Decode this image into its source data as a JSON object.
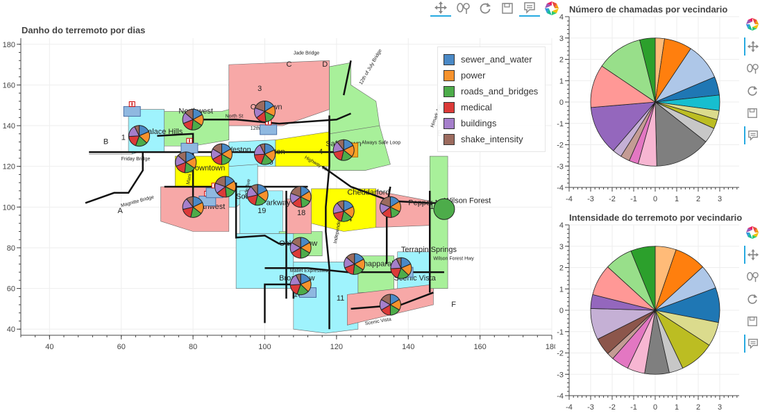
{
  "colors": {
    "sewer_and_water": "#4a89c6",
    "power": "#f7922c",
    "roads_and_bridges": "#4dac4a",
    "medical": "#dc3a38",
    "buildings": "#a57fcb",
    "shake_intensity": "#9c6b5e",
    "toolbar_accent": "#26aae1"
  },
  "toolbar": {
    "icons": [
      "pan-icon",
      "wheel-zoom-icon",
      "reset-icon",
      "save-icon",
      "hover-icon",
      "bokeh-logo-icon"
    ]
  },
  "main": {
    "title": "Danho do terremoto por dias",
    "map": {
      "district_names": [
        "Palace Hills",
        "Northwest",
        "Old Town",
        "Safe Town",
        "Weston",
        "Easton",
        "Downtown",
        "Southton",
        "Southwest",
        "Pepper Mill",
        "Cheddarford",
        "Parkway",
        "Oak Willow",
        "Broadview",
        "Chapparal",
        "Terrapin Springs",
        "Scenic Vista",
        "Wilson Forest"
      ],
      "district_numbers": [
        "1",
        "2",
        "3",
        "4",
        "5",
        "6",
        "7",
        "8",
        "9",
        "10",
        "11",
        "12",
        "13",
        "14",
        "15",
        "16",
        "17",
        "18",
        "19"
      ],
      "street_labels": [
        "North St",
        "12th St",
        "Friday Bridge",
        "Magnitte Bridge",
        "Jade Bridge",
        "Highway 19",
        "Mallet Expressway",
        "Scenic Vista",
        "Himark Ave",
        "Always Safe Loop",
        "12th of July Bridge",
        "Wilson Forest Hwy",
        "Jade Ave",
        "Independence Ave",
        "Himark Bridge",
        "Jade St",
        "Mani St"
      ],
      "region_letters": [
        "A",
        "B",
        "C",
        "D",
        "E",
        "F"
      ]
    },
    "chart_data": {
      "type": "scatter",
      "title": "Danho do terremoto por dias",
      "xlim": [
        32,
        180
      ],
      "ylim": [
        37,
        183
      ],
      "xticks": [
        40,
        60,
        80,
        100,
        120,
        140,
        160,
        180
      ],
      "yticks": [
        40,
        60,
        80,
        100,
        120,
        140,
        160,
        180
      ],
      "grid": true,
      "legend": {
        "location": "top-right",
        "entries": [
          "sewer_and_water",
          "power",
          "roads_and_bridges",
          "medical",
          "buildings",
          "shake_intensity"
        ]
      },
      "series": [
        {
          "name": "pies",
          "points": [
            {
              "x": 65,
              "y": 135
            },
            {
              "x": 80,
              "y": 143
            },
            {
              "x": 100,
              "y": 147
            },
            {
              "x": 122,
              "y": 128
            },
            {
              "x": 88,
              "y": 126
            },
            {
              "x": 100,
              "y": 126
            },
            {
              "x": 78,
              "y": 122
            },
            {
              "x": 89,
              "y": 110
            },
            {
              "x": 80,
              "y": 100
            },
            {
              "x": 110,
              "y": 80
            },
            {
              "x": 110,
              "y": 62
            },
            {
              "x": 125,
              "y": 72
            },
            {
              "x": 135,
              "y": 100
            },
            {
              "x": 122,
              "y": 98
            },
            {
              "x": 135,
              "y": 52
            },
            {
              "x": 138,
              "y": 70
            },
            {
              "x": 150,
              "y": 99
            },
            {
              "x": 110,
              "y": 105
            },
            {
              "x": 98,
              "y": 106
            }
          ]
        }
      ]
    }
  },
  "pie_top": {
    "title": "Número de chamadas por vecindario",
    "chart_data": {
      "type": "pie",
      "title": "Número de chamadas por vecindario",
      "xlim": [
        -4,
        4
      ],
      "ylim": [
        -4,
        4
      ],
      "ticks": [
        -4,
        -3,
        -2,
        -1,
        0,
        1,
        2,
        3,
        4
      ],
      "grid": true,
      "slices": [
        {
          "value": 3,
          "color": "#ffbb78"
        },
        {
          "value": 9,
          "color": "#ff7f0e"
        },
        {
          "value": 12,
          "color": "#aec7e8"
        },
        {
          "value": 6,
          "color": "#1f77b4"
        },
        {
          "value": 5,
          "color": "#17becf"
        },
        {
          "value": 3,
          "color": "#dbdb8d"
        },
        {
          "value": 3,
          "color": "#bcbd22"
        },
        {
          "value": 5,
          "color": "#c7c7c7"
        },
        {
          "value": 18,
          "color": "#7f7f7f"
        },
        {
          "value": 6,
          "color": "#f7b6d2"
        },
        {
          "value": 3,
          "color": "#e377c2"
        },
        {
          "value": 3,
          "color": "#c49c94"
        },
        {
          "value": 3,
          "color": "#c5b0d5"
        },
        {
          "value": 16,
          "color": "#9467bd"
        },
        {
          "value": 14,
          "color": "#ff9896"
        },
        {
          "value": 15,
          "color": "#98df8a"
        },
        {
          "value": 5,
          "color": "#2ca02c"
        }
      ]
    }
  },
  "pie_bottom": {
    "title": "Intensidade do terremoto por vecindario",
    "chart_data": {
      "type": "pie",
      "title": "Intensidade do terremoto por vecindario",
      "xlim": [
        -4,
        4
      ],
      "ylim": [
        -4,
        4
      ],
      "ticks": [
        -4,
        -3,
        -2,
        -1,
        0,
        1,
        2,
        3,
        4
      ],
      "grid": true,
      "slices": [
        {
          "value": 6,
          "color": "#ffbb78"
        },
        {
          "value": 9,
          "color": "#ff7f0e"
        },
        {
          "value": 7,
          "color": "#aec7e8"
        },
        {
          "value": 10,
          "color": "#1f77b4"
        },
        {
          "value": 7,
          "color": "#dbdb8d"
        },
        {
          "value": 10,
          "color": "#bcbd22"
        },
        {
          "value": 4,
          "color": "#c7c7c7"
        },
        {
          "value": 7,
          "color": "#7f7f7f"
        },
        {
          "value": 5,
          "color": "#f7b6d2"
        },
        {
          "value": 5,
          "color": "#e377c2"
        },
        {
          "value": 2,
          "color": "#c49c94"
        },
        {
          "value": 5,
          "color": "#8c564b"
        },
        {
          "value": 9,
          "color": "#c5b0d5"
        },
        {
          "value": 4,
          "color": "#9467bd"
        },
        {
          "value": 9,
          "color": "#ff9896"
        },
        {
          "value": 8,
          "color": "#98df8a"
        },
        {
          "value": 7,
          "color": "#2ca02c"
        }
      ]
    }
  }
}
